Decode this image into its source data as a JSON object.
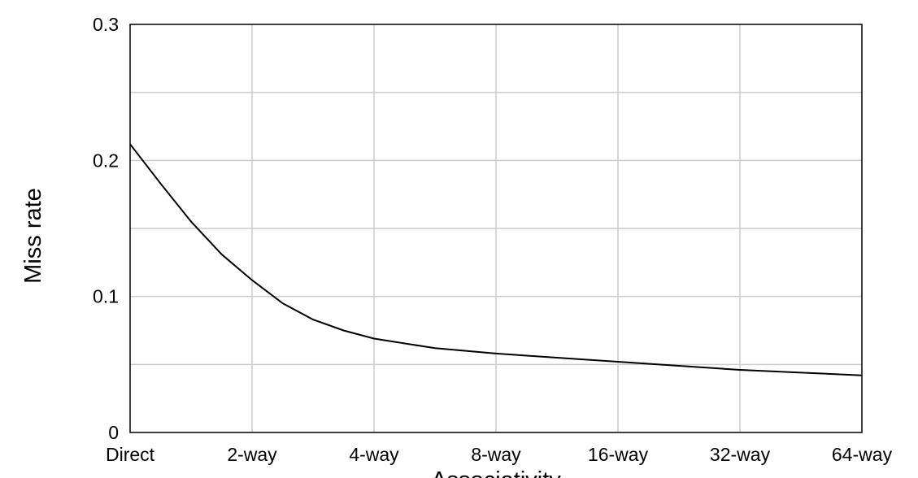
{
  "chart_data": {
    "type": "line",
    "title": "",
    "xlabel": "Associativity",
    "ylabel": "Miss rate",
    "categories": [
      "Direct",
      "2-way",
      "4-way",
      "8-way",
      "16-way",
      "32-way",
      "64-way"
    ],
    "y_ticks": [
      "0",
      "0.1",
      "0.2",
      "0.3"
    ],
    "ylim": [
      0,
      0.3
    ],
    "grid": true,
    "legend": "none",
    "series": [
      {
        "x": [
          0,
          0.25,
          0.5,
          0.75,
          1,
          1.25,
          1.5,
          1.75,
          2,
          2.5,
          3,
          3.5,
          4,
          4.5,
          5,
          5.5,
          6
        ],
        "values": [
          0.212,
          0.183,
          0.155,
          0.131,
          0.112,
          0.095,
          0.083,
          0.075,
          0.069,
          0.062,
          0.058,
          0.055,
          0.052,
          0.049,
          0.046,
          0.044,
          0.042
        ]
      }
    ],
    "colors": {
      "line": "#000000",
      "grid": "#cccccc",
      "frame": "#000000"
    }
  }
}
